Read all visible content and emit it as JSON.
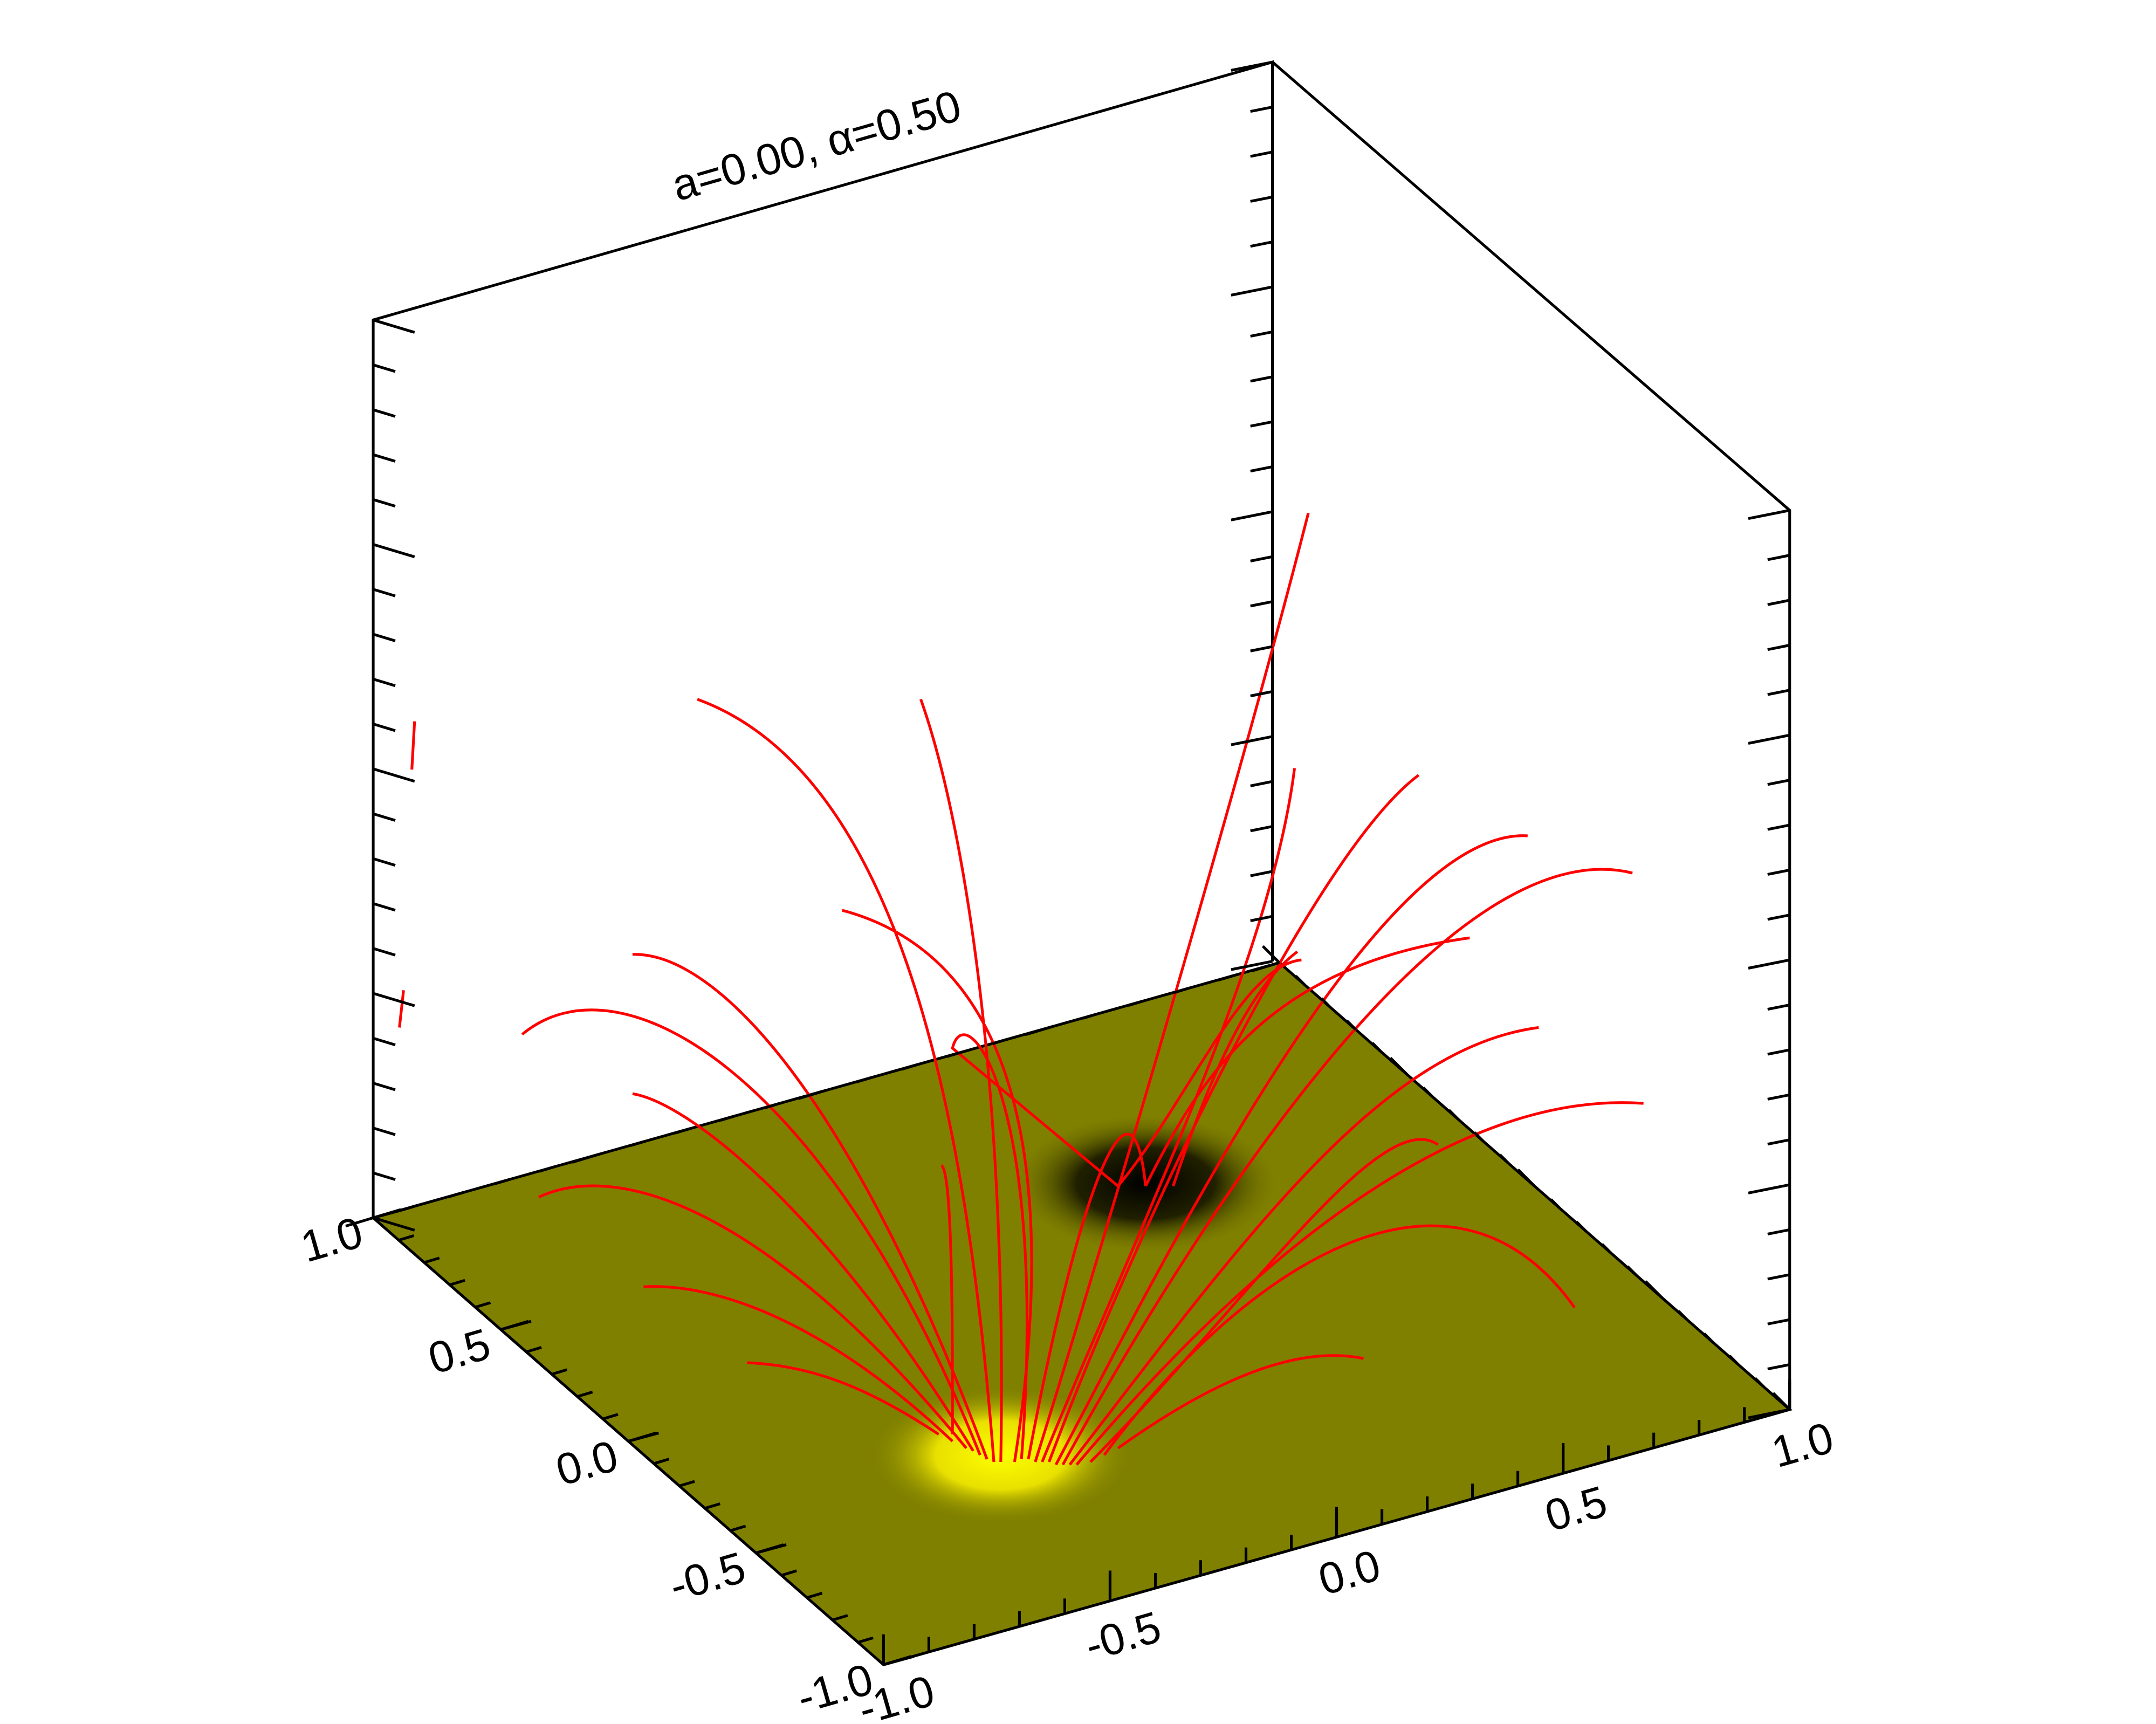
{
  "chart_data": {
    "type": "surface3d",
    "title": "a=0.00, α=0.50",
    "xlim": [
      -1,
      1
    ],
    "ylim": [
      -1,
      1
    ],
    "xticks": [
      {
        "value": -1,
        "label": "-1.0"
      },
      -0.5,
      {
        "value": 0,
        "label": "0.0"
      },
      0.5,
      {
        "value": 1,
        "label": "1.0"
      }
    ],
    "yticks": [
      {
        "value": -1,
        "label": "-1.0"
      },
      -0.5,
      {
        "value": 0,
        "label": "0.0"
      },
      0.5,
      {
        "value": 1,
        "label": "1.0"
      }
    ],
    "color": "#808000"
  }
}
